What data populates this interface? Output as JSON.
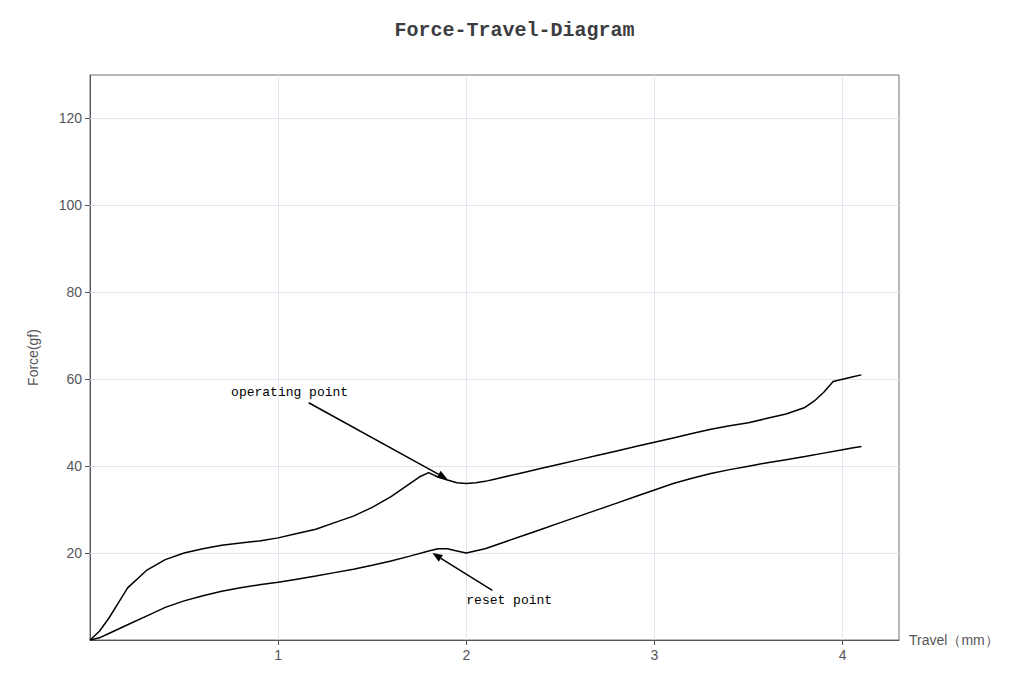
{
  "chart_data": {
    "type": "line",
    "title": "Force-Travel-Diagram",
    "x_label": "Travel（mm）",
    "y_label": "Force(gf)",
    "xlim": [
      0,
      4.3
    ],
    "ylim": [
      0,
      130
    ],
    "xticks": [
      1,
      2,
      3,
      4
    ],
    "yticks": [
      20,
      40,
      60,
      80,
      100,
      120
    ],
    "grid": true,
    "series": [
      {
        "color": "#000000",
        "x": [
          0.0,
          0.05,
          0.1,
          0.15,
          0.2,
          0.3,
          0.4,
          0.5,
          0.6,
          0.7,
          0.8,
          0.9,
          1.0,
          1.1,
          1.2,
          1.3,
          1.4,
          1.5,
          1.6,
          1.65,
          1.7,
          1.75,
          1.8,
          1.85,
          1.9,
          1.95,
          2.0,
          2.05,
          2.1,
          2.15,
          2.2,
          2.3,
          2.4,
          2.5,
          2.6,
          2.7,
          2.8,
          2.9,
          3.0,
          3.1,
          3.2,
          3.3,
          3.4,
          3.5,
          3.6,
          3.7,
          3.8,
          3.85,
          3.9,
          3.95,
          4.0,
          4.05,
          4.1
        ],
        "values": [
          0.0,
          2.0,
          5.0,
          8.5,
          12.0,
          16.0,
          18.5,
          20.0,
          21.0,
          21.8,
          22.3,
          22.8,
          23.5,
          24.5,
          25.5,
          27.0,
          28.5,
          30.5,
          33.0,
          34.5,
          36.0,
          37.5,
          38.5,
          37.5,
          36.8,
          36.2,
          36.0,
          36.2,
          36.5,
          37.0,
          37.5,
          38.5,
          39.5,
          40.5,
          41.5,
          42.5,
          43.5,
          44.5,
          45.5,
          46.5,
          47.5,
          48.5,
          49.3,
          50.0,
          51.0,
          52.0,
          53.5,
          55.0,
          57.0,
          59.5,
          60.0,
          60.5,
          61.0
        ]
      },
      {
        "color": "#000000",
        "x": [
          0.0,
          0.05,
          0.1,
          0.2,
          0.3,
          0.4,
          0.5,
          0.6,
          0.7,
          0.8,
          0.9,
          1.0,
          1.1,
          1.2,
          1.3,
          1.4,
          1.5,
          1.6,
          1.7,
          1.8,
          1.85,
          1.9,
          1.95,
          2.0,
          2.1,
          2.2,
          2.3,
          2.4,
          2.5,
          2.6,
          2.7,
          2.8,
          2.9,
          3.0,
          3.1,
          3.2,
          3.3,
          3.4,
          3.5,
          3.6,
          3.7,
          3.8,
          3.9,
          4.0,
          4.05,
          4.1
        ],
        "values": [
          0.0,
          0.5,
          1.5,
          3.5,
          5.5,
          7.5,
          9.0,
          10.2,
          11.2,
          12.0,
          12.7,
          13.3,
          14.0,
          14.7,
          15.5,
          16.3,
          17.2,
          18.2,
          19.3,
          20.5,
          21.0,
          21.0,
          20.5,
          20.0,
          21.0,
          22.5,
          24.0,
          25.5,
          27.0,
          28.5,
          30.0,
          31.5,
          33.0,
          34.5,
          36.0,
          37.2,
          38.3,
          39.2,
          40.0,
          40.8,
          41.5,
          42.2,
          43.0,
          43.8,
          44.2,
          44.5
        ]
      }
    ],
    "annotations": [
      {
        "text": "operating point",
        "x": 1.9,
        "y": 37,
        "text_x": 0.75,
        "text_y": 57
      },
      {
        "text": "reset point",
        "x": 1.82,
        "y": 20,
        "text_x": 2.0,
        "text_y": 9
      }
    ]
  }
}
